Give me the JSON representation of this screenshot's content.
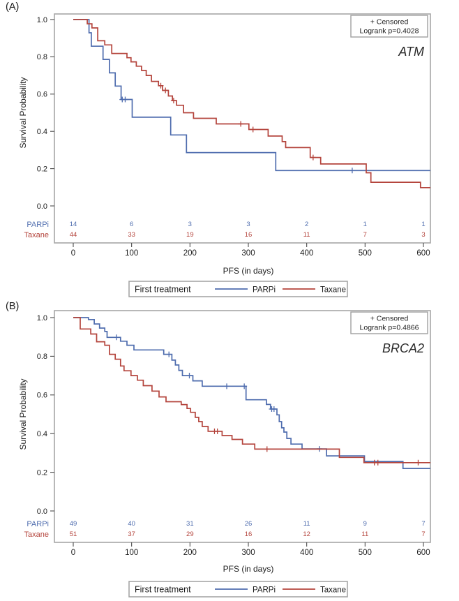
{
  "page": {
    "background": "#ffffff"
  },
  "shared": {
    "y_axis_label": "Survival Probability",
    "x_axis_label": "PFS (in days)",
    "x_ticks": [
      "0",
      "100",
      "200",
      "300",
      "400",
      "500",
      "600"
    ],
    "y_ticks": [
      "1.0",
      "0.8",
      "0.6",
      "0.4",
      "0.2",
      "0.0"
    ],
    "legend_title": "First treatment",
    "censored_label": "+ Censored",
    "legend_entries": [
      "PARPi",
      "Taxane"
    ]
  },
  "colors": {
    "parpi": "#4e6cae",
    "taxane": "#b4443c",
    "frame": "#a6a6a6",
    "tick": "#4a4a4a",
    "text": "#1c1c1c",
    "box_border": "#a0a0a0"
  },
  "chart_data": [
    {
      "type": "km_survival_step",
      "panel_label": "(A)",
      "gene": "ATM",
      "logrank_label": "Logrank p=0.4028",
      "x_range": [
        0,
        612
      ],
      "y_range": [
        0,
        1
      ],
      "series": [
        {
          "name": "PARPi",
          "color_key": "parpi",
          "steps": [
            [
              0,
              1.0
            ],
            [
              27,
              0.929
            ],
            [
              31,
              0.857
            ],
            [
              51,
              0.786
            ],
            [
              62,
              0.714
            ],
            [
              72,
              0.643
            ],
            [
              82,
              0.571
            ],
            [
              101,
              0.476
            ],
            [
              167,
              0.381
            ],
            [
              194,
              0.286
            ],
            [
              347,
              0.19
            ],
            [
              612,
              0.19
            ]
          ],
          "censors": [
            [
              84,
              0.571
            ],
            [
              89,
              0.571
            ],
            [
              478,
              0.19
            ]
          ]
        },
        {
          "name": "Taxane",
          "color_key": "taxane",
          "steps": [
            [
              0,
              1.0
            ],
            [
              24,
              0.977
            ],
            [
              32,
              0.955
            ],
            [
              42,
              0.886
            ],
            [
              54,
              0.864
            ],
            [
              66,
              0.818
            ],
            [
              92,
              0.795
            ],
            [
              99,
              0.773
            ],
            [
              108,
              0.75
            ],
            [
              117,
              0.727
            ],
            [
              125,
              0.7
            ],
            [
              134,
              0.668
            ],
            [
              146,
              0.645
            ],
            [
              153,
              0.62
            ],
            [
              163,
              0.59
            ],
            [
              170,
              0.565
            ],
            [
              177,
              0.54
            ],
            [
              189,
              0.5
            ],
            [
              206,
              0.47
            ],
            [
              245,
              0.44
            ],
            [
              301,
              0.41
            ],
            [
              334,
              0.375
            ],
            [
              358,
              0.345
            ],
            [
              364,
              0.313
            ],
            [
              406,
              0.26
            ],
            [
              424,
              0.225
            ],
            [
              502,
              0.178
            ],
            [
              510,
              0.127
            ],
            [
              595,
              0.098
            ],
            [
              612,
              0.098
            ]
          ],
          "censors": [
            [
              150,
              0.645
            ],
            [
              158,
              0.62
            ],
            [
              172,
              0.565
            ],
            [
              287,
              0.44
            ],
            [
              308,
              0.41
            ],
            [
              411,
              0.26
            ]
          ]
        }
      ],
      "at_risk": {
        "times": [
          0,
          100,
          200,
          300,
          400,
          500,
          600
        ],
        "rows": [
          {
            "label": "PARPi",
            "color_key": "parpi",
            "values": [
              "14",
              "6",
              "3",
              "3",
              "2",
              "1",
              "1"
            ]
          },
          {
            "label": "Taxane",
            "color_key": "taxane",
            "values": [
              "44",
              "33",
              "19",
              "16",
              "11",
              "7",
              "3"
            ]
          }
        ]
      }
    },
    {
      "type": "km_survival_step",
      "panel_label": "(B)",
      "gene": "BRCA2",
      "logrank_label": "Logrank p=0.4866",
      "x_range": [
        0,
        612
      ],
      "y_range": [
        0,
        1
      ],
      "series": [
        {
          "name": "PARPi",
          "color_key": "parpi",
          "steps": [
            [
              0,
              1.0
            ],
            [
              26,
              0.99
            ],
            [
              36,
              0.967
            ],
            [
              45,
              0.946
            ],
            [
              54,
              0.928
            ],
            [
              58,
              0.898
            ],
            [
              81,
              0.878
            ],
            [
              92,
              0.857
            ],
            [
              104,
              0.833
            ],
            [
              155,
              0.81
            ],
            [
              169,
              0.78
            ],
            [
              175,
              0.755
            ],
            [
              181,
              0.727
            ],
            [
              187,
              0.7
            ],
            [
              205,
              0.673
            ],
            [
              221,
              0.645
            ],
            [
              296,
              0.575
            ],
            [
              331,
              0.551
            ],
            [
              338,
              0.527
            ],
            [
              349,
              0.497
            ],
            [
              353,
              0.462
            ],
            [
              357,
              0.43
            ],
            [
              361,
              0.408
            ],
            [
              366,
              0.375
            ],
            [
              373,
              0.346
            ],
            [
              392,
              0.321
            ],
            [
              434,
              0.285
            ],
            [
              499,
              0.256
            ],
            [
              565,
              0.22
            ],
            [
              612,
              0.22
            ]
          ],
          "censors": [
            [
              74,
              0.898
            ],
            [
              164,
              0.81
            ],
            [
              199,
              0.7
            ],
            [
              263,
              0.645
            ],
            [
              293,
              0.645
            ],
            [
              340,
              0.527
            ],
            [
              344,
              0.527
            ],
            [
              422,
              0.321
            ]
          ]
        },
        {
          "name": "Taxane",
          "color_key": "taxane",
          "steps": [
            [
              0,
              1.0
            ],
            [
              12,
              0.941
            ],
            [
              30,
              0.915
            ],
            [
              40,
              0.875
            ],
            [
              54,
              0.857
            ],
            [
              62,
              0.81
            ],
            [
              72,
              0.785
            ],
            [
              81,
              0.75
            ],
            [
              87,
              0.725
            ],
            [
              99,
              0.7
            ],
            [
              110,
              0.676
            ],
            [
              120,
              0.648
            ],
            [
              135,
              0.62
            ],
            [
              147,
              0.59
            ],
            [
              159,
              0.565
            ],
            [
              185,
              0.55
            ],
            [
              195,
              0.53
            ],
            [
              201,
              0.51
            ],
            [
              209,
              0.484
            ],
            [
              215,
              0.462
            ],
            [
              221,
              0.437
            ],
            [
              231,
              0.412
            ],
            [
              255,
              0.39
            ],
            [
              272,
              0.37
            ],
            [
              290,
              0.346
            ],
            [
              311,
              0.32
            ],
            [
              456,
              0.277
            ],
            [
              498,
              0.25
            ],
            [
              612,
              0.25
            ]
          ],
          "censors": [
            [
              242,
              0.412
            ],
            [
              247,
              0.412
            ],
            [
              332,
              0.32
            ],
            [
              516,
              0.25
            ],
            [
              522,
              0.25
            ],
            [
              591,
              0.25
            ]
          ]
        }
      ],
      "at_risk": {
        "times": [
          0,
          100,
          200,
          300,
          400,
          500,
          600
        ],
        "rows": [
          {
            "label": "PARPi",
            "color_key": "parpi",
            "values": [
              "49",
              "40",
              "31",
              "26",
              "11",
              "9",
              "7"
            ]
          },
          {
            "label": "Taxane",
            "color_key": "taxane",
            "values": [
              "51",
              "37",
              "29",
              "16",
              "12",
              "11",
              "7"
            ]
          }
        ]
      }
    }
  ]
}
